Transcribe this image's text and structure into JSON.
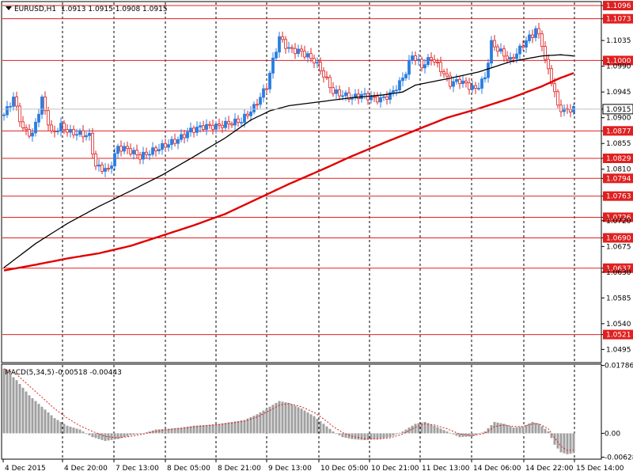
{
  "header": {
    "symbol": "EURUSD,H1",
    "ohlc": "1.0913 1.0915 1.0908 1.0915"
  },
  "macd_header": {
    "label": "MACD(5,34,5)",
    "values": "-0.00518 -0.00443"
  },
  "colors": {
    "bull": "#2a7de1",
    "bear": "#e02020",
    "level": "#e02020",
    "ma_slow": "#e00000",
    "ma_fast": "#000000",
    "hist": "#a0a0a0",
    "signal": "#e02020",
    "current": "#ffffff"
  },
  "chart_data": [
    {
      "type": "candlestick",
      "symbol": "EURUSD",
      "timeframe": "H1",
      "ylim": [
        1.0472,
        1.1103
      ],
      "y_ticks": [
        "1.1096",
        "1.1073",
        "1.1035",
        "1.1000",
        "1.0990",
        "1.0945",
        "1.0915",
        "1.0900",
        "1.0877",
        "1.0855",
        "1.0829",
        "1.0810",
        "1.0794",
        "1.0763",
        "1.0726",
        "1.0720",
        "1.0690",
        "1.0675",
        "1.0637",
        "1.0630",
        "1.0585",
        "1.0540",
        "1.0521",
        "1.0495"
      ],
      "x_ticks": [
        "4 Dec 2015",
        "4 Dec 20:00",
        "7 Dec 13:00",
        "8 Dec 05:00",
        "8 Dec 21:00",
        "9 Dec 13:00",
        "10 Dec 05:00",
        "10 Dec 21:00",
        "11 Dec 13:00",
        "14 Dec 06:00",
        "14 Dec 22:00",
        "15 Dec 14:00"
      ],
      "current_price": "1.0915",
      "levels": [
        "1.1096",
        "1.1073",
        "1.1000",
        "1.0877",
        "1.0829",
        "1.0794",
        "1.0763",
        "1.0726",
        "1.0690",
        "1.0637",
        "1.0521"
      ],
      "close_anchors": [
        [
          0,
          1.0905
        ],
        [
          3,
          1.0935
        ],
        [
          6,
          1.088
        ],
        [
          9,
          1.087
        ],
        [
          12,
          1.0932
        ],
        [
          15,
          1.0872
        ],
        [
          18,
          1.0885
        ],
        [
          21,
          1.0874
        ],
        [
          24,
          1.0872
        ],
        [
          27,
          1.0868
        ],
        [
          29,
          1.0815
        ],
        [
          33,
          1.0808
        ],
        [
          36,
          1.0848
        ],
        [
          39,
          1.0845
        ],
        [
          43,
          1.0832
        ],
        [
          47,
          1.0842
        ],
        [
          51,
          1.0852
        ],
        [
          55,
          1.0862
        ],
        [
          59,
          1.0878
        ],
        [
          63,
          1.0885
        ],
        [
          67,
          1.0885
        ],
        [
          71,
          1.089
        ],
        [
          75,
          1.0895
        ],
        [
          79,
          1.0918
        ],
        [
          83,
          1.0955
        ],
        [
          85,
          1.1
        ],
        [
          87,
          1.104
        ],
        [
          90,
          1.102
        ],
        [
          94,
          1.1015
        ],
        [
          98,
          1.1
        ],
        [
          101,
          1.0975
        ],
        [
          104,
          1.0945
        ],
        [
          107,
          1.094
        ],
        [
          110,
          1.0935
        ],
        [
          113,
          1.094
        ],
        [
          116,
          1.0935
        ],
        [
          119,
          1.0932
        ],
        [
          122,
          1.094
        ],
        [
          125,
          1.096
        ],
        [
          127,
          1.098
        ],
        [
          129,
          1.101
        ],
        [
          132,
          1.099
        ],
        [
          135,
          1.1005
        ],
        [
          138,
          1.0985
        ],
        [
          141,
          1.096
        ],
        [
          144,
          1.0965
        ],
        [
          147,
          1.0955
        ],
        [
          149,
          1.095
        ],
        [
          152,
          1.097
        ],
        [
          154,
          1.103
        ],
        [
          157,
          1.1015
        ],
        [
          160,
          1.1
        ],
        [
          163,
          1.102
        ],
        [
          165,
          1.1035
        ],
        [
          167,
          1.1045
        ],
        [
          168,
          1.1055
        ],
        [
          170,
          1.103
        ],
        [
          171,
          1.1
        ],
        [
          173,
          1.0965
        ],
        [
          175,
          1.092
        ],
        [
          177,
          1.0912
        ],
        [
          179,
          1.0915
        ]
      ],
      "ma_fast": [
        [
          0,
          1.0638
        ],
        [
          10,
          1.068
        ],
        [
          20,
          1.0715
        ],
        [
          30,
          1.0745
        ],
        [
          40,
          1.0772
        ],
        [
          50,
          1.08
        ],
        [
          60,
          1.0832
        ],
        [
          70,
          1.0865
        ],
        [
          78,
          1.0896
        ],
        [
          84,
          1.0912
        ],
        [
          90,
          1.0921
        ],
        [
          100,
          1.0928
        ],
        [
          110,
          1.0935
        ],
        [
          120,
          1.094
        ],
        [
          126,
          1.0945
        ],
        [
          130,
          1.0957
        ],
        [
          140,
          1.0968
        ],
        [
          150,
          1.098
        ],
        [
          160,
          1.0998
        ],
        [
          170,
          1.1008
        ],
        [
          176,
          1.101
        ],
        [
          180,
          1.1008
        ]
      ],
      "ma_slow": [
        [
          0,
          1.0633
        ],
        [
          10,
          1.0643
        ],
        [
          20,
          1.0654
        ],
        [
          30,
          1.0663
        ],
        [
          40,
          1.0676
        ],
        [
          50,
          1.0694
        ],
        [
          60,
          1.0712
        ],
        [
          70,
          1.0732
        ],
        [
          80,
          1.0758
        ],
        [
          90,
          1.0784
        ],
        [
          100,
          1.0808
        ],
        [
          110,
          1.0833
        ],
        [
          120,
          1.0856
        ],
        [
          130,
          1.0878
        ],
        [
          140,
          1.09
        ],
        [
          150,
          1.0916
        ],
        [
          160,
          1.0934
        ],
        [
          170,
          1.0955
        ],
        [
          176,
          1.097
        ],
        [
          180,
          1.0978
        ]
      ]
    },
    {
      "type": "bar",
      "indicator": "MACD",
      "params": "5,34,5",
      "ylim": [
        -0.0068,
        0.0182
      ],
      "y_ticks": [
        "0.01786",
        "0.00",
        "-0.00628"
      ],
      "hist_anchors": [
        [
          0,
          0.017
        ],
        [
          4,
          0.014
        ],
        [
          8,
          0.01
        ],
        [
          12,
          0.007
        ],
        [
          16,
          0.004
        ],
        [
          20,
          0.002
        ],
        [
          24,
          0.001
        ],
        [
          28,
          -0.001
        ],
        [
          32,
          -0.002
        ],
        [
          36,
          -0.0015
        ],
        [
          40,
          -0.0005
        ],
        [
          44,
          0.0
        ],
        [
          48,
          0.001
        ],
        [
          52,
          0.0012
        ],
        [
          56,
          0.0015
        ],
        [
          60,
          0.002
        ],
        [
          64,
          0.0022
        ],
        [
          68,
          0.0025
        ],
        [
          72,
          0.003
        ],
        [
          76,
          0.0035
        ],
        [
          80,
          0.005
        ],
        [
          84,
          0.007
        ],
        [
          87,
          0.0085
        ],
        [
          90,
          0.008
        ],
        [
          94,
          0.0065
        ],
        [
          98,
          0.0045
        ],
        [
          101,
          0.0025
        ],
        [
          104,
          0.0005
        ],
        [
          107,
          -0.001
        ],
        [
          110,
          -0.0015
        ],
        [
          114,
          -0.0018
        ],
        [
          118,
          -0.0015
        ],
        [
          122,
          -0.001
        ],
        [
          126,
          0.0005
        ],
        [
          130,
          0.0025
        ],
        [
          133,
          0.003
        ],
        [
          136,
          0.002
        ],
        [
          140,
          0.0005
        ],
        [
          144,
          -0.001
        ],
        [
          148,
          -0.0008
        ],
        [
          152,
          0.0005
        ],
        [
          155,
          0.003
        ],
        [
          158,
          0.0025
        ],
        [
          161,
          0.0015
        ],
        [
          164,
          0.0018
        ],
        [
          167,
          0.003
        ],
        [
          169,
          0.0025
        ],
        [
          172,
          0.0005
        ],
        [
          174,
          -0.003
        ],
        [
          176,
          -0.005
        ],
        [
          178,
          -0.0055
        ],
        [
          180,
          -0.0052
        ]
      ],
      "signal_anchors": [
        [
          0,
          0.017
        ],
        [
          4,
          0.0155
        ],
        [
          8,
          0.0125
        ],
        [
          12,
          0.0095
        ],
        [
          16,
          0.0065
        ],
        [
          20,
          0.004
        ],
        [
          24,
          0.002
        ],
        [
          28,
          0.0005
        ],
        [
          32,
          -0.0008
        ],
        [
          36,
          -0.0012
        ],
        [
          40,
          -0.0008
        ],
        [
          44,
          -0.0002
        ],
        [
          48,
          0.0005
        ],
        [
          52,
          0.001
        ],
        [
          56,
          0.0013
        ],
        [
          60,
          0.0017
        ],
        [
          64,
          0.002
        ],
        [
          68,
          0.0023
        ],
        [
          72,
          0.0027
        ],
        [
          76,
          0.0032
        ],
        [
          80,
          0.0043
        ],
        [
          84,
          0.006
        ],
        [
          87,
          0.0074
        ],
        [
          90,
          0.0078
        ],
        [
          94,
          0.007
        ],
        [
          98,
          0.0055
        ],
        [
          101,
          0.0038
        ],
        [
          104,
          0.0018
        ],
        [
          107,
          0.0002
        ],
        [
          110,
          -0.0008
        ],
        [
          114,
          -0.0014
        ],
        [
          118,
          -0.0015
        ],
        [
          122,
          -0.0012
        ],
        [
          126,
          -0.0002
        ],
        [
          130,
          0.0016
        ],
        [
          133,
          0.0025
        ],
        [
          136,
          0.0022
        ],
        [
          140,
          0.0012
        ],
        [
          144,
          -0.0002
        ],
        [
          148,
          -0.0006
        ],
        [
          152,
          0.0
        ],
        [
          155,
          0.0018
        ],
        [
          158,
          0.0022
        ],
        [
          161,
          0.0018
        ],
        [
          164,
          0.0018
        ],
        [
          167,
          0.0025
        ],
        [
          169,
          0.0025
        ],
        [
          172,
          0.0012
        ],
        [
          174,
          -0.0012
        ],
        [
          176,
          -0.0034
        ],
        [
          178,
          -0.0045
        ],
        [
          180,
          -0.0044
        ]
      ]
    }
  ]
}
